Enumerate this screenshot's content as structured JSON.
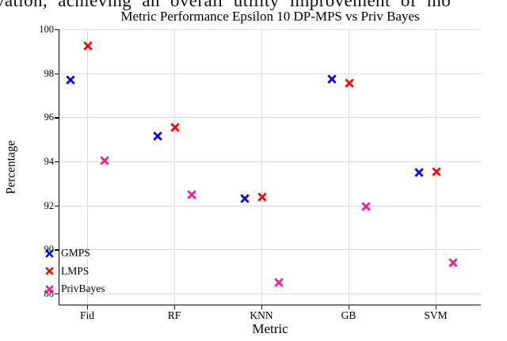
{
  "page": {
    "cropped_text_line": "vation, achieving an overall utility improvement of mo"
  },
  "chart_data": {
    "type": "scatter",
    "title": "Metric Performance Epsilon 10 DP-MPS vs Priv Bayes",
    "xlabel": "Metric",
    "ylabel": "Percentage",
    "categories": [
      "Fid",
      "RF",
      "KNN",
      "GB",
      "SVM"
    ],
    "y_ticks": [
      88,
      90,
      92,
      94,
      96,
      98,
      100
    ],
    "ylim": [
      87.5,
      100
    ],
    "grid": true,
    "marker": "X",
    "legend_position": "lower left",
    "series": [
      {
        "name": "GMPS",
        "color": "#0000ff",
        "values": [
          97.7,
          95.15,
          92.3,
          97.75,
          93.5
        ]
      },
      {
        "name": "LMPS",
        "color": "#ff0000",
        "values": [
          99.25,
          95.55,
          92.4,
          97.55,
          93.55
        ]
      },
      {
        "name": "PrivBayes",
        "color": "#ff1493",
        "values": [
          94.05,
          92.5,
          88.5,
          91.95,
          89.4
        ]
      }
    ]
  }
}
